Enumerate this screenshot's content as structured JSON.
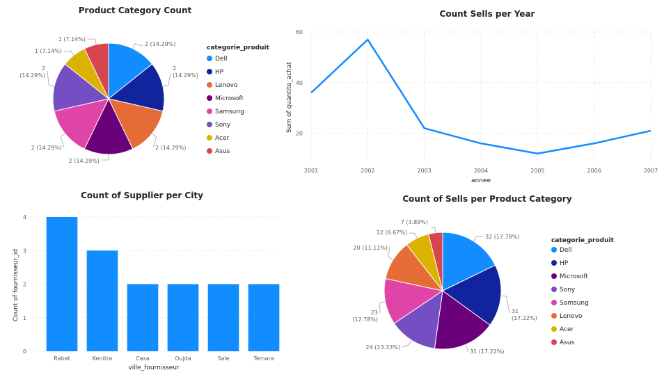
{
  "chart_data": [
    {
      "type": "pie",
      "title": "Product Category Count",
      "legend_title": "categorie_produit",
      "legend_position": "right",
      "categories": [
        "Dell",
        "HP",
        "Lenovo",
        "Microsoft",
        "Samsung",
        "Sony",
        "Acer",
        "Asus"
      ],
      "values": [
        2,
        2,
        2,
        2,
        2,
        2,
        1,
        1
      ],
      "labels": [
        "2 (14.29%)",
        "2 (14.29%)",
        "2 (14.29%)",
        "2 (14.29%)",
        "2 (14.29%)",
        "2 (14.29%)",
        "1 (7.14%)",
        "1 (7.14%)"
      ],
      "colors": [
        "#118DFF",
        "#12239E",
        "#E66C37",
        "#6B007B",
        "#E044A7",
        "#744EC2",
        "#D9B300",
        "#D64550"
      ]
    },
    {
      "type": "line",
      "title": "Count Sells per Year",
      "xlabel": "annee",
      "ylabel": "Sum of quantite_achat",
      "x": [
        2001,
        2002,
        2003,
        2004,
        2005,
        2006,
        2007
      ],
      "values": [
        36,
        57,
        22,
        16,
        12,
        16,
        21
      ],
      "ylim": [
        10,
        60
      ],
      "yticks": [
        20,
        40,
        60
      ],
      "grid": true,
      "color": "#118DFF"
    },
    {
      "type": "bar",
      "title": "Count of Supplier per City",
      "xlabel": "ville_fournisseur",
      "ylabel": "Count of fournisseur_id",
      "categories": [
        "Rabat",
        "Kenitra",
        "Casa",
        "Oujda",
        "Sale",
        "Temara"
      ],
      "values": [
        4,
        3,
        2,
        2,
        2,
        2
      ],
      "ylim": [
        0,
        4
      ],
      "yticks": [
        0,
        1,
        2,
        3,
        4
      ],
      "grid": true,
      "color": "#118DFF"
    },
    {
      "type": "pie",
      "title": "Count of Sells per Product Category",
      "legend_title": "categorie_produit",
      "legend_position": "right",
      "categories": [
        "Dell",
        "HP",
        "Microsoft",
        "Sony",
        "Samsung",
        "Lenovo",
        "Acer",
        "Asus"
      ],
      "values": [
        32,
        31,
        31,
        24,
        23,
        20,
        12,
        7
      ],
      "labels": [
        "32 (17.78%)",
        "31 (17.22%)",
        "31 (17.22%)",
        "24 (13.33%)",
        "23 (12.78%)",
        "20 (11.11%)",
        "12 (6.67%)",
        "7 (3.89%)"
      ],
      "colors": [
        "#118DFF",
        "#12239E",
        "#6B007B",
        "#744EC2",
        "#E044A7",
        "#E66C37",
        "#D9B300",
        "#D64550"
      ]
    }
  ]
}
